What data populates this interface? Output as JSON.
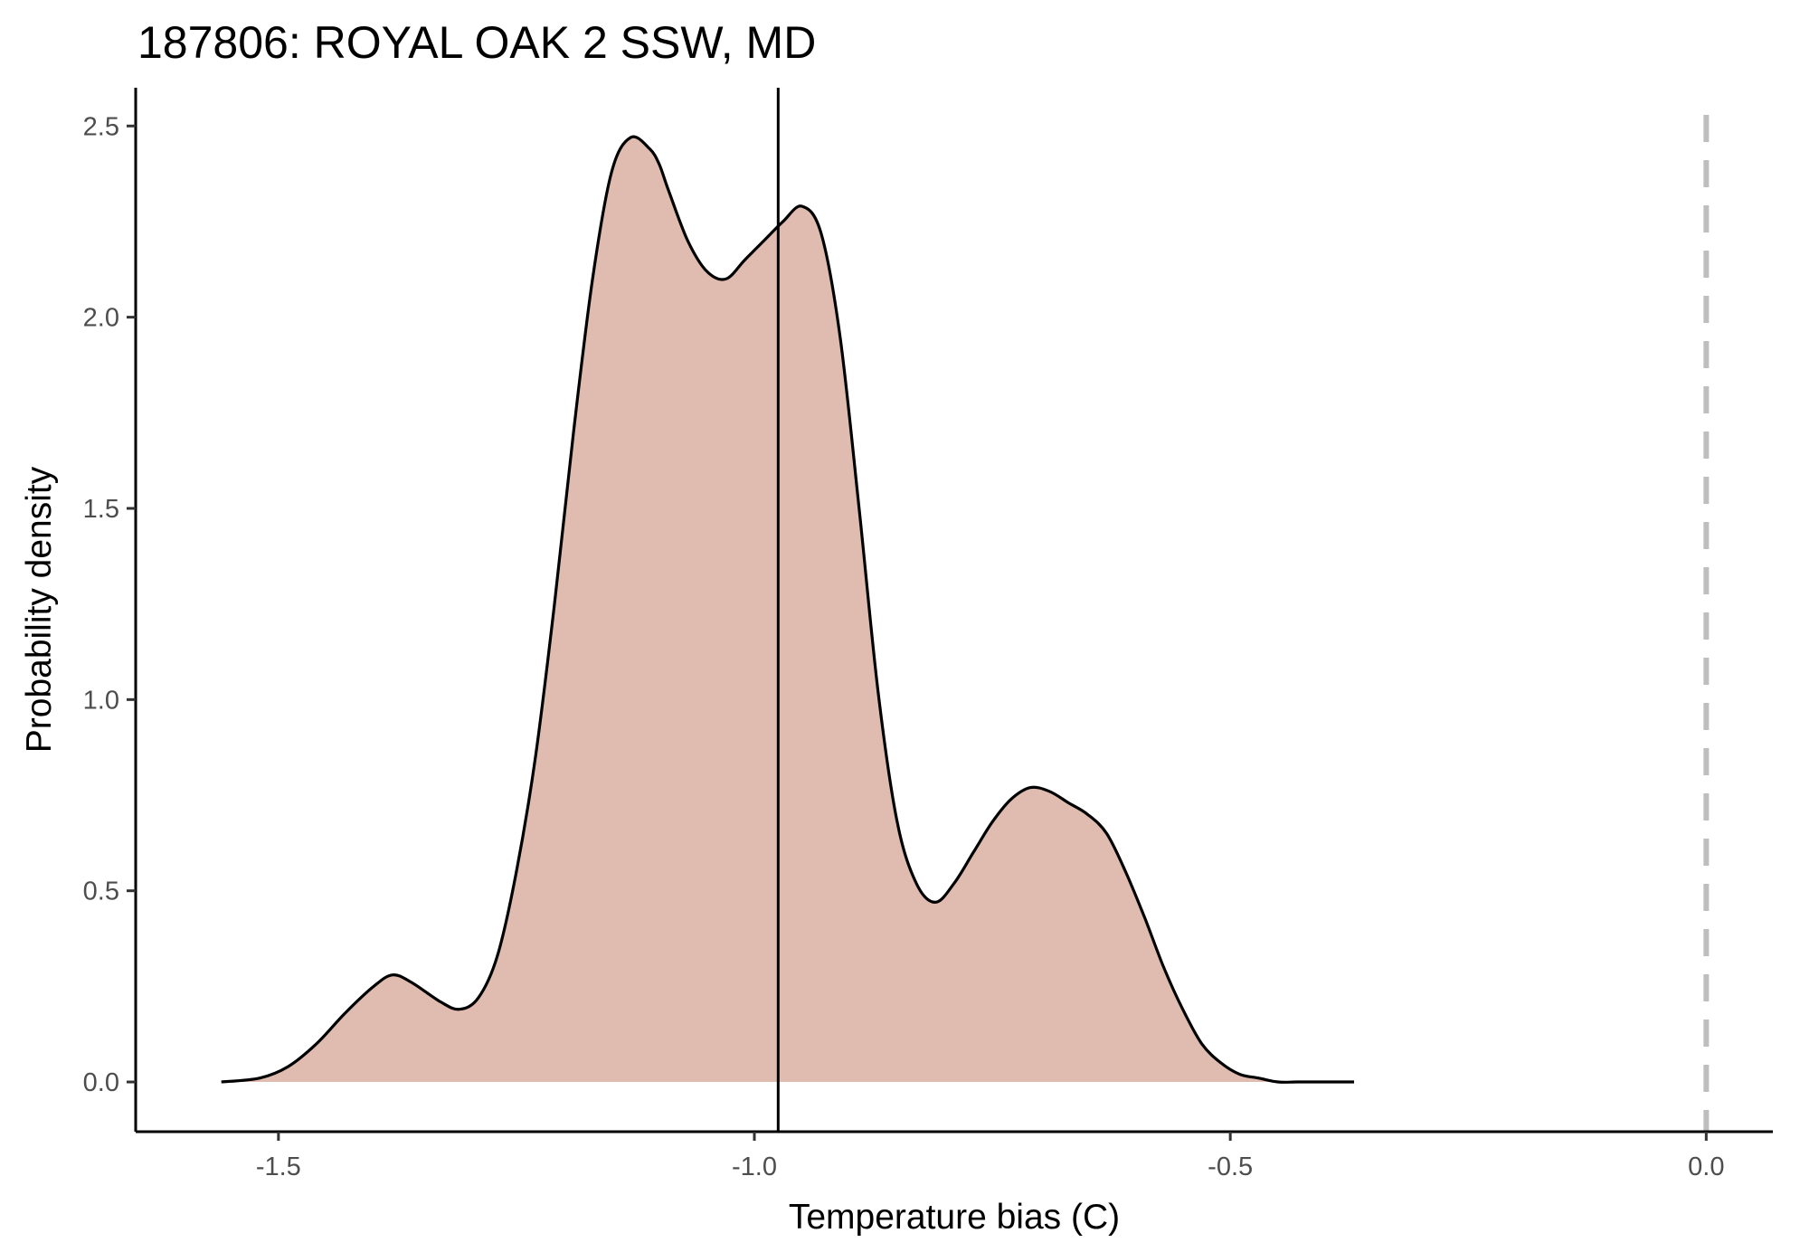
{
  "chart_data": {
    "type": "area",
    "title": "187806: ROYAL OAK 2 SSW, MD",
    "xlabel": "Temperature bias (C)",
    "ylabel": "Probability density",
    "xlim": [
      -1.65,
      0.07
    ],
    "ylim": [
      -0.13,
      2.6
    ],
    "x_ticks": [
      -1.5,
      -1.0,
      -0.5,
      0.0
    ],
    "x_tick_labels": [
      "-1.5",
      "-1.0",
      "-0.5",
      "0.0"
    ],
    "y_ticks": [
      0.0,
      0.5,
      1.0,
      1.5,
      2.0,
      2.5
    ],
    "y_tick_labels": [
      "0.0",
      "0.5",
      "1.0",
      "1.5",
      "2.0",
      "2.5"
    ],
    "grid": false,
    "legend": "none",
    "fill_color": "#e0bbb0",
    "line_color": "#000000",
    "reference_line_color": "#000000",
    "zero_line_color": "#bebebe",
    "series": [
      {
        "x": [
          -1.56,
          -1.52,
          -1.49,
          -1.46,
          -1.43,
          -1.4,
          -1.38,
          -1.36,
          -1.33,
          -1.31,
          -1.29,
          -1.27,
          -1.25,
          -1.23,
          -1.21,
          -1.19,
          -1.17,
          -1.15,
          -1.13,
          -1.11,
          -1.1,
          -1.09,
          -1.07,
          -1.05,
          -1.03,
          -1.01,
          -0.99,
          -0.97,
          -0.95,
          -0.93,
          -0.91,
          -0.89,
          -0.87,
          -0.85,
          -0.83,
          -0.81,
          -0.79,
          -0.77,
          -0.75,
          -0.73,
          -0.71,
          -0.69,
          -0.67,
          -0.65,
          -0.63,
          -0.61,
          -0.59,
          -0.57,
          -0.55,
          -0.53,
          -0.51,
          -0.49,
          -0.47,
          -0.45,
          -0.43,
          -0.41,
          -0.39,
          -0.37
        ],
        "y": [
          0.0,
          0.01,
          0.04,
          0.1,
          0.18,
          0.25,
          0.28,
          0.26,
          0.21,
          0.19,
          0.22,
          0.33,
          0.55,
          0.85,
          1.25,
          1.7,
          2.1,
          2.38,
          2.47,
          2.44,
          2.4,
          2.33,
          2.2,
          2.12,
          2.1,
          2.15,
          2.2,
          2.25,
          2.29,
          2.22,
          1.95,
          1.5,
          1.02,
          0.68,
          0.52,
          0.47,
          0.52,
          0.6,
          0.68,
          0.74,
          0.77,
          0.76,
          0.73,
          0.7,
          0.65,
          0.55,
          0.43,
          0.3,
          0.19,
          0.1,
          0.05,
          0.02,
          0.01,
          0.0,
          0.0,
          0.0,
          0.0,
          0.0
        ]
      }
    ],
    "reference_line_x": -0.975,
    "zero_line_x": 0.0
  }
}
